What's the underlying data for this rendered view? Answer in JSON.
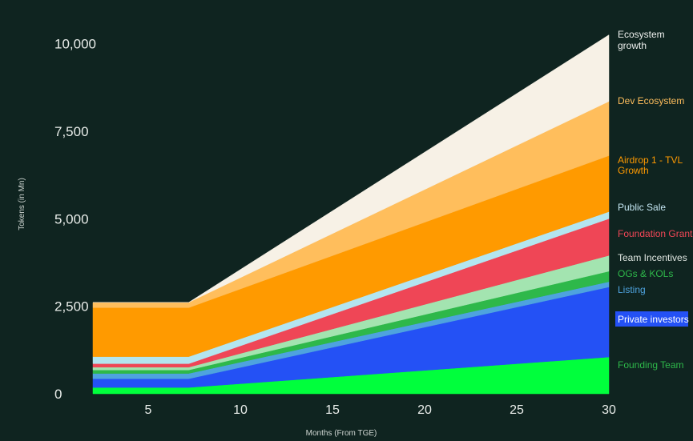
{
  "chart_data": {
    "type": "area",
    "stacked": true,
    "xlabel": "Months (From TGE)",
    "ylabel": "Tokens (in Mn)",
    "xlim": [
      2,
      30
    ],
    "ylim": [
      0,
      10400
    ],
    "x_ticks": [
      5,
      10,
      15,
      20,
      25,
      30
    ],
    "y_ticks": [
      0,
      2500,
      5000,
      7500,
      10000
    ],
    "y_tick_labels": [
      "0",
      "2,500",
      "5,000",
      "7,500",
      "10,000"
    ],
    "x": [
      2,
      7.2,
      30
    ],
    "series": [
      {
        "name": "Founding Team",
        "color": "#00ff3c",
        "values": [
          180,
          180,
          1050
        ]
      },
      {
        "name": "Private investors",
        "color": "#2451f5",
        "values": [
          250,
          250,
          2000
        ]
      },
      {
        "name": "Listing",
        "color": "#4ea3df",
        "values": [
          150,
          150,
          150
        ]
      },
      {
        "name": "OGs & KOLs",
        "color": "#2eb84a",
        "values": [
          100,
          100,
          300
        ]
      },
      {
        "name": "Team Incentives",
        "color": "#a3e4b0",
        "values": [
          80,
          80,
          450
        ]
      },
      {
        "name": "Foundation Grant",
        "color": "#ef4656",
        "values": [
          100,
          100,
          1050
        ]
      },
      {
        "name": "Public Sale",
        "color": "#b3e5f0",
        "values": [
          200,
          200,
          200
        ]
      },
      {
        "name": "Airdrop 1 - TVL Growth",
        "color": "#ff9a00",
        "values": [
          1400,
          1400,
          1600
        ]
      },
      {
        "name": "Dev Ecosystem",
        "color": "#ffbe5c",
        "values": [
          150,
          150,
          1550
        ]
      },
      {
        "name": "Ecosystem growth",
        "color": "#f7f1e6",
        "values": [
          0,
          0,
          1900
        ]
      }
    ],
    "legend": [
      {
        "label": "Ecosystem growth",
        "color": "#eef0ee"
      },
      {
        "label": "Dev Ecosystem",
        "color": "#ffbe5c"
      },
      {
        "label": "Airdrop 1 - TVL Growth",
        "color": "#ff9a00"
      },
      {
        "label": "Public Sale",
        "color": "#c4e6f2"
      },
      {
        "label": "Foundation Grant",
        "color": "#ef4656"
      },
      {
        "label": "Team Incentives",
        "color": "#dfe6e1"
      },
      {
        "label": "OGs & KOLs",
        "color": "#2eb84a"
      },
      {
        "label": "Listing",
        "color": "#4ea3df"
      },
      {
        "label": "Private investors",
        "color": "#ffffff",
        "highlight": "#2451f5"
      },
      {
        "label": "Founding Team",
        "color": "#2eb84a"
      }
    ]
  }
}
